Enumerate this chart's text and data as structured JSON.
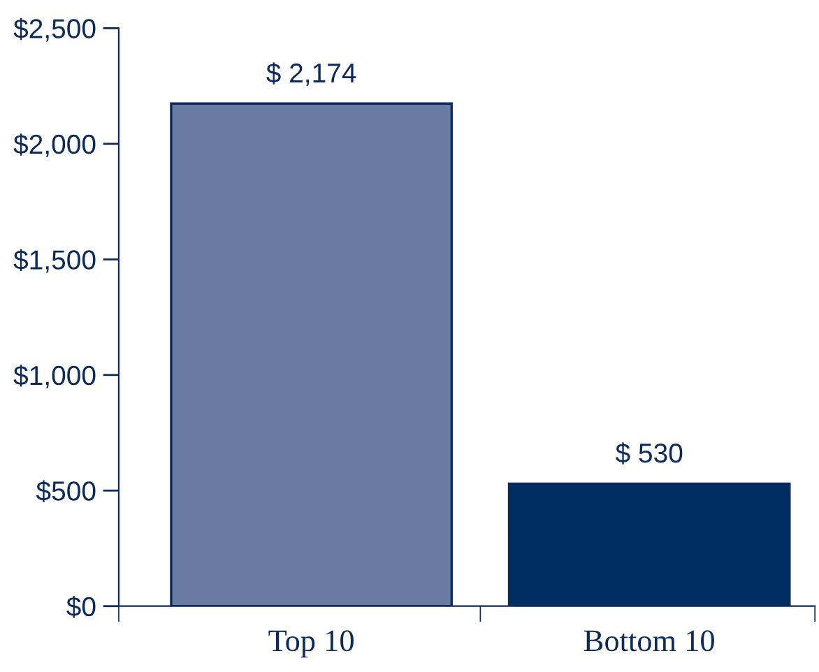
{
  "chart_data": {
    "type": "bar",
    "categories": [
      "Top 10",
      "Bottom 10"
    ],
    "values": [
      2174,
      530
    ],
    "colors": [
      "#6a7ba3",
      "#002d62"
    ],
    "value_labels": [
      "$ 2,174",
      "$ 530"
    ],
    "ylim": [
      0,
      2500
    ],
    "yticks": [
      {
        "value": 0,
        "label": "$0"
      },
      {
        "value": 500,
        "label": "$500"
      },
      {
        "value": 1000,
        "label": "$1,000"
      },
      {
        "value": 1500,
        "label": "$1,500"
      },
      {
        "value": 2000,
        "label": "$2,000"
      },
      {
        "value": 2500,
        "label": "$2,500"
      }
    ],
    "grid": false,
    "legend": false
  }
}
